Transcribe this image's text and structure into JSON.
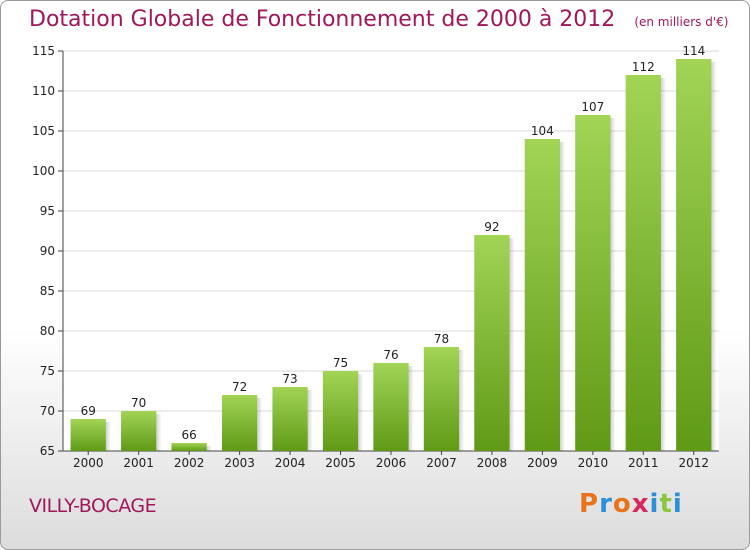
{
  "header": {
    "title": "Dotation Globale de Fonctionnement de 2000 à 2012",
    "unit": "(en milliers d'€)"
  },
  "footer": {
    "commune": "VILLY-BOCAGE",
    "logo": "Proxiti"
  },
  "colors": {
    "accent": "#a0185a",
    "bar_light": "#a2d456",
    "bar_dark": "#5f9a16"
  },
  "chart_data": {
    "type": "bar",
    "title": "Dotation Globale de Fonctionnement de 2000 à 2012",
    "subtitle": "(en milliers d'€)",
    "xlabel": "",
    "ylabel": "",
    "categories": [
      "2000",
      "2001",
      "2002",
      "2003",
      "2004",
      "2005",
      "2006",
      "2007",
      "2008",
      "2009",
      "2010",
      "2011",
      "2012"
    ],
    "values": [
      69,
      70,
      66,
      72,
      73,
      75,
      76,
      78,
      92,
      104,
      107,
      112,
      114
    ],
    "ylim": [
      65,
      115
    ],
    "yticks": [
      65,
      70,
      75,
      80,
      85,
      90,
      95,
      100,
      105,
      110,
      115
    ],
    "grid": true,
    "legend": "none"
  }
}
